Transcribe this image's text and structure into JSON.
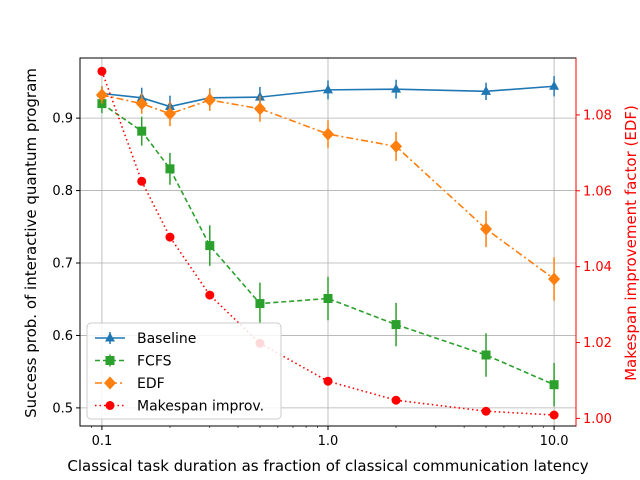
{
  "chart_data": {
    "type": "line",
    "title": "",
    "xlabel": "Classical task duration as fraction of classical communication latency",
    "ylabel": "Success prob. of interactive quantum program",
    "y2label": "Makespan improvement factor (EDF)",
    "xscale": "log",
    "xlim": [
      0.08,
      12.5
    ],
    "ylim": [
      0.475,
      0.983
    ],
    "y2lim": [
      0.998,
      1.095
    ],
    "xticks": [
      0.1,
      1.0,
      10.0
    ],
    "xtick_labels": [
      "0.1",
      "1.0",
      "10.0"
    ],
    "yticks": [
      0.5,
      0.6,
      0.7,
      0.8,
      0.9
    ],
    "ytick_labels": [
      "0.5",
      "0.6",
      "0.7",
      "0.8",
      "0.9"
    ],
    "y2ticks": [
      1.0,
      1.02,
      1.04,
      1.06,
      1.08
    ],
    "y2tick_labels": [
      "1.00",
      "1.02",
      "1.04",
      "1.06",
      "1.08"
    ],
    "grid": true,
    "legend_position": "lower-left",
    "x": [
      0.1,
      0.15,
      0.2,
      0.3,
      0.5,
      1.0,
      2.0,
      5.0,
      10.0
    ],
    "series": [
      {
        "name": "Baseline",
        "axis": "left",
        "color": "#1f77b4",
        "marker": "triangle",
        "linestyle": "solid",
        "values": [
          0.934,
          0.928,
          0.916,
          0.928,
          0.929,
          0.939,
          0.94,
          0.937,
          0.944
        ],
        "errors": [
          0.01,
          0.014,
          0.015,
          0.013,
          0.014,
          0.013,
          0.013,
          0.012,
          0.014
        ]
      },
      {
        "name": "FCFS",
        "axis": "left",
        "color": "#2ca02c",
        "marker": "square",
        "linestyle": "dashed",
        "values": [
          0.92,
          0.882,
          0.83,
          0.724,
          0.644,
          0.651,
          0.615,
          0.573,
          0.532
        ],
        "errors": [
          0.013,
          0.02,
          0.022,
          0.028,
          0.029,
          0.03,
          0.03,
          0.03,
          0.03
        ]
      },
      {
        "name": "EDF",
        "axis": "left",
        "color": "#ff7f0e",
        "marker": "diamond",
        "linestyle": "dashdot",
        "values": [
          0.932,
          0.92,
          0.906,
          0.925,
          0.913,
          0.878,
          0.861,
          0.747,
          0.678
        ],
        "errors": [
          0.012,
          0.014,
          0.017,
          0.015,
          0.018,
          0.019,
          0.02,
          0.025,
          0.03
        ]
      },
      {
        "name": "Makespan improv.",
        "axis": "right",
        "color": "#ff0000",
        "marker": "circle",
        "linestyle": "dotted",
        "values": [
          1.0915,
          1.0625,
          1.0478,
          1.0325,
          1.0198,
          1.0098,
          1.0048,
          1.0019,
          1.0009
        ],
        "errors": null
      }
    ]
  }
}
